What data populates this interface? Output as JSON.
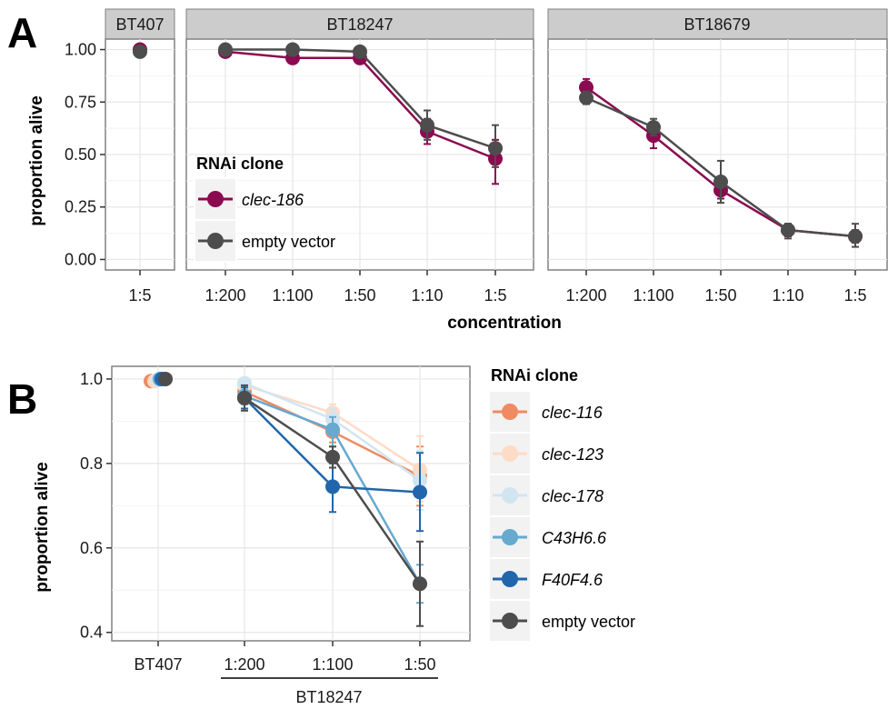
{
  "colors": {
    "panel_bg": "#ffffff",
    "strip_bg": "#cccccc",
    "grid": "#e6e6e6",
    "clec186": "#8b0a50",
    "empty_vector": "#4d4d4d",
    "clec116": "#ef8a62",
    "clec123": "#fddbc7",
    "clec178": "#d1e5f0",
    "c43h66": "#67a9cf",
    "f40f46": "#2166ac"
  },
  "chart_data": [
    {
      "panel": "A",
      "type": "line",
      "facets": [
        {
          "label": "BT407",
          "categories": [
            "1:5"
          ]
        },
        {
          "label": "BT18247",
          "categories": [
            "1:200",
            "1:100",
            "1:50",
            "1:10",
            "1:5"
          ]
        },
        {
          "label": "BT18679",
          "categories": [
            "1:200",
            "1:100",
            "1:50",
            "1:10",
            "1:5"
          ]
        }
      ],
      "xlabel": "concentration",
      "ylabel": "proportion alive",
      "ylim": [
        -0.05,
        1.05
      ],
      "yticks": [
        "0.00",
        "0.25",
        "0.50",
        "0.75",
        "1.00"
      ],
      "grid": true,
      "legend": {
        "title": "RNAi clone",
        "placement": "inside-left",
        "entries": [
          {
            "name": "clec-186",
            "italic": true
          },
          {
            "name": "empty vector",
            "italic": false
          }
        ]
      },
      "series": [
        {
          "name": "clec-186",
          "facets": [
            {
              "values": [
                1.0
              ],
              "lower": [
                0.99
              ],
              "upper": [
                1.0
              ]
            },
            {
              "values": [
                0.99,
                0.96,
                0.96,
                0.61,
                0.48
              ],
              "lower": [
                0.98,
                0.95,
                0.95,
                0.55,
                0.36
              ],
              "upper": [
                1.0,
                0.98,
                0.98,
                0.67,
                0.57
              ]
            },
            {
              "values": [
                0.82,
                0.59,
                0.33,
                0.14,
                0.11
              ],
              "lower": [
                0.78,
                0.53,
                0.29,
                0.11,
                0.08
              ],
              "upper": [
                0.86,
                0.64,
                0.37,
                0.17,
                0.14
              ]
            }
          ]
        },
        {
          "name": "empty vector",
          "facets": [
            {
              "values": [
                0.99
              ],
              "lower": [
                0.98
              ],
              "upper": [
                1.0
              ]
            },
            {
              "values": [
                1.0,
                1.0,
                0.99,
                0.64,
                0.53
              ],
              "lower": [
                0.99,
                0.99,
                0.98,
                0.57,
                0.44
              ],
              "upper": [
                1.0,
                1.0,
                1.0,
                0.71,
                0.64
              ]
            },
            {
              "values": [
                0.77,
                0.63,
                0.37,
                0.14,
                0.11
              ],
              "lower": [
                0.74,
                0.59,
                0.27,
                0.1,
                0.06
              ],
              "upper": [
                0.8,
                0.67,
                0.47,
                0.17,
                0.17
              ]
            }
          ]
        }
      ]
    },
    {
      "panel": "B",
      "type": "line",
      "categories": [
        "BT407",
        "1:200",
        "1:100",
        "1:50"
      ],
      "group_label": "BT18247",
      "xlabel": "",
      "ylabel": "proportion alive",
      "ylim": [
        0.38,
        1.03
      ],
      "yticks": [
        "0.4",
        "0.6",
        "0.8",
        "1.0"
      ],
      "grid": true,
      "legend": {
        "title": "RNAi clone",
        "placement": "right",
        "entries": [
          {
            "name": "clec-116",
            "italic": true
          },
          {
            "name": "clec-123",
            "italic": true
          },
          {
            "name": "clec-178",
            "italic": true
          },
          {
            "name": "C43H6.6",
            "italic": true
          },
          {
            "name": "F40F4.6",
            "italic": true
          },
          {
            "name": "empty vector",
            "italic": false
          }
        ]
      },
      "series": [
        {
          "name": "clec-116",
          "values": [
            0.995,
            0.97,
            0.875,
            0.77
          ],
          "lower": [
            null,
            0.95,
            0.85,
            0.7
          ],
          "upper": [
            null,
            0.99,
            0.9,
            0.84
          ]
        },
        {
          "name": "clec-123",
          "values": [
            0.995,
            0.985,
            0.92,
            0.785
          ],
          "lower": [
            null,
            0.97,
            0.9,
            0.71
          ],
          "upper": [
            null,
            1.0,
            0.94,
            0.865
          ]
        },
        {
          "name": "clec-178",
          "values": [
            0.998,
            0.99,
            0.905,
            0.76
          ],
          "lower": [
            null,
            0.975,
            0.88,
            0.69
          ],
          "upper": [
            null,
            1.0,
            0.93,
            0.83
          ]
        },
        {
          "name": "C43H6.6",
          "values": [
            1.0,
            0.96,
            0.88,
            0.515
          ],
          "lower": [
            null,
            0.94,
            0.84,
            0.47
          ],
          "upper": [
            null,
            0.98,
            0.91,
            0.56
          ]
        },
        {
          "name": "F40F4.6",
          "values": [
            1.0,
            0.955,
            0.745,
            0.732
          ],
          "lower": [
            null,
            0.93,
            0.685,
            0.64
          ],
          "upper": [
            null,
            0.98,
            0.8,
            0.825
          ]
        },
        {
          "name": "empty vector",
          "values": [
            1.0,
            0.955,
            0.815,
            0.515
          ],
          "lower": [
            null,
            0.925,
            0.79,
            0.415
          ],
          "upper": [
            null,
            0.985,
            0.84,
            0.615
          ]
        }
      ]
    }
  ]
}
